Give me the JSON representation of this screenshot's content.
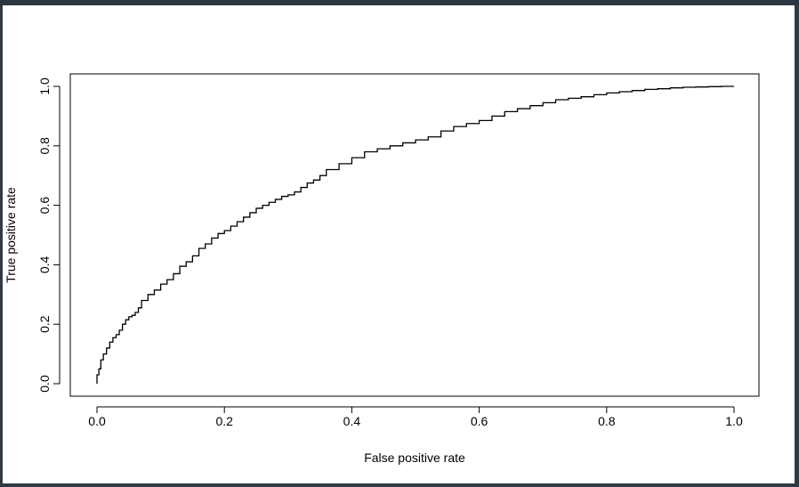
{
  "chart_data": {
    "type": "line",
    "title": "",
    "xlabel": "False positive rate",
    "ylabel": "True positive rate",
    "xlim": [
      0,
      1
    ],
    "ylim": [
      0,
      1
    ],
    "grid": false,
    "x_ticks": [
      "0.0",
      "0.2",
      "0.4",
      "0.6",
      "0.8",
      "1.0"
    ],
    "y_ticks": [
      "0.0",
      "0.2",
      "0.4",
      "0.6",
      "0.8",
      "1.0"
    ],
    "series": [
      {
        "color": "#000000",
        "x": [
          0.0,
          0.003,
          0.006,
          0.01,
          0.015,
          0.02,
          0.025,
          0.03,
          0.035,
          0.04,
          0.045,
          0.05,
          0.055,
          0.06,
          0.065,
          0.07,
          0.08,
          0.09,
          0.1,
          0.11,
          0.12,
          0.13,
          0.14,
          0.15,
          0.16,
          0.17,
          0.18,
          0.19,
          0.2,
          0.21,
          0.22,
          0.23,
          0.24,
          0.25,
          0.26,
          0.27,
          0.28,
          0.29,
          0.3,
          0.31,
          0.32,
          0.33,
          0.34,
          0.35,
          0.36,
          0.38,
          0.4,
          0.42,
          0.44,
          0.46,
          0.48,
          0.5,
          0.52,
          0.54,
          0.56,
          0.58,
          0.6,
          0.62,
          0.64,
          0.66,
          0.68,
          0.7,
          0.72,
          0.74,
          0.76,
          0.78,
          0.8,
          0.82,
          0.84,
          0.86,
          0.88,
          0.9,
          0.92,
          0.94,
          0.96,
          0.98,
          1.0
        ],
        "y": [
          0.0,
          0.03,
          0.05,
          0.08,
          0.1,
          0.12,
          0.14,
          0.155,
          0.165,
          0.18,
          0.2,
          0.215,
          0.225,
          0.23,
          0.24,
          0.255,
          0.28,
          0.3,
          0.315,
          0.335,
          0.35,
          0.37,
          0.395,
          0.41,
          0.43,
          0.455,
          0.47,
          0.49,
          0.505,
          0.515,
          0.53,
          0.545,
          0.56,
          0.575,
          0.59,
          0.6,
          0.61,
          0.62,
          0.63,
          0.635,
          0.645,
          0.66,
          0.675,
          0.685,
          0.7,
          0.72,
          0.74,
          0.76,
          0.78,
          0.79,
          0.8,
          0.81,
          0.82,
          0.83,
          0.85,
          0.865,
          0.875,
          0.885,
          0.9,
          0.915,
          0.925,
          0.935,
          0.945,
          0.955,
          0.96,
          0.965,
          0.972,
          0.978,
          0.982,
          0.986,
          0.99,
          0.992,
          0.995,
          0.997,
          0.998,
          0.999,
          1.0
        ]
      }
    ]
  }
}
